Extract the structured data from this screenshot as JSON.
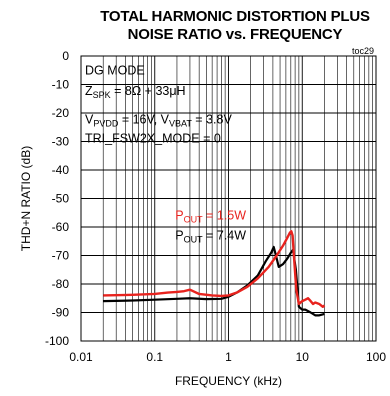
{
  "chart_data": {
    "type": "line",
    "title": "TOTAL HARMONIC DISTORTION PLUS",
    "subtitle": "NOISE RATIO vs. FREQUENCY",
    "tag": "toc29",
    "xlabel": "FREQUENCY (kHz)",
    "ylabel": "THD+N RATIO (dB)",
    "xscale": "log",
    "xlim": [
      0.01,
      100
    ],
    "ylim": [
      -100,
      0
    ],
    "xticks": [
      "0.01",
      "0.1",
      "1",
      "10",
      "100"
    ],
    "yticks": [
      "0",
      "-10",
      "-20",
      "-30",
      "-40",
      "-50",
      "-60",
      "-70",
      "-80",
      "-90",
      "-100"
    ],
    "grid": true,
    "annotations": {
      "mode": "DG MODE",
      "zspk_prefix": "Z",
      "zspk_sub": "SPK",
      "zspk_value": " = 8Ω + 33μH",
      "vpvdd_prefix": "V",
      "vpvdd_sub": "PVDD",
      "vpvdd_value": " = 16V, V",
      "vvbat_sub": "VBAT",
      "vvbat_value": " = 3.8V",
      "tri": "TRI_FSW2X_MODE = 0"
    },
    "series": [
      {
        "name": "P_OUT = 1.5W",
        "label_prefix": "P",
        "label_sub": "OUT",
        "label_value": " = 1.5W",
        "color": "#e8231e",
        "x": [
          0.02,
          0.05,
          0.1,
          0.15,
          0.2,
          0.25,
          0.3,
          0.4,
          0.6,
          0.8,
          1.0,
          1.3,
          1.8,
          2.5,
          3.5,
          4.5,
          5.5,
          6.2,
          6.8,
          7.1,
          7.4,
          7.8,
          8.3,
          9.0,
          10,
          11,
          12,
          13,
          14,
          15,
          17,
          19,
          20
        ],
        "y": [
          -84,
          -83.8,
          -83.5,
          -83,
          -82.8,
          -82.5,
          -82,
          -83.5,
          -84,
          -84.2,
          -84,
          -83,
          -81,
          -78,
          -74,
          -70,
          -66.5,
          -64,
          -62,
          -61.5,
          -63,
          -72,
          -82,
          -87,
          -86,
          -85.5,
          -85,
          -86,
          -87,
          -86.5,
          -87,
          -88,
          -87.5
        ]
      },
      {
        "name": "P_OUT = 7.4W",
        "label_prefix": "P",
        "label_sub": "OUT",
        "label_value": " = 7.4W",
        "color": "#000000",
        "x": [
          0.02,
          0.05,
          0.1,
          0.2,
          0.3,
          0.5,
          0.8,
          1.0,
          1.3,
          1.8,
          2.5,
          3.2,
          3.8,
          4.1,
          4.4,
          4.8,
          5.5,
          6.3,
          7.0,
          7.5,
          8.2,
          9.0,
          10,
          11,
          13,
          15,
          17,
          20
        ],
        "y": [
          -86,
          -85.8,
          -85.5,
          -85.2,
          -85,
          -85.3,
          -85.2,
          -84.5,
          -83,
          -80.5,
          -77,
          -72,
          -69,
          -67,
          -70,
          -74,
          -73,
          -71,
          -69,
          -68,
          -75,
          -88,
          -89,
          -89,
          -90,
          -91,
          -91,
          -90.5
        ]
      }
    ]
  }
}
